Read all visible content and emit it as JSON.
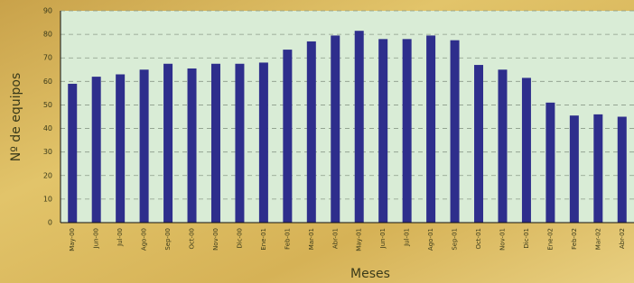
{
  "chart_data": {
    "type": "bar",
    "x_label": "Meses",
    "y_label": "Nº de equipos",
    "categories": [
      "May-00",
      "Jun-00",
      "Jul-00",
      "Ago-00",
      "Sep-00",
      "Oct-00",
      "Nov-00",
      "Dic-00",
      "Ene-01",
      "Feb-01",
      "Mar-01",
      "Abr-01",
      "May-01",
      "Jun-01",
      "Jul-01",
      "Ago-01",
      "Sep-01",
      "Oct-01",
      "Nov-01",
      "Dic-01",
      "Ene-02",
      "Feb-02",
      "Mar-02",
      "Abr-02"
    ],
    "values": [
      59,
      62,
      63,
      65,
      67.5,
      65.5,
      67.5,
      67.5,
      68,
      73.5,
      77,
      79.5,
      81.5,
      78,
      78,
      79.5,
      77.5,
      67,
      65,
      61.5,
      51,
      45.5,
      46,
      45
    ],
    "color": "#2e2e8c",
    "ylim": [
      0,
      90
    ],
    "yticks": [
      0,
      10,
      20,
      30,
      40,
      50,
      60,
      70,
      80,
      90
    ],
    "grid": true
  }
}
